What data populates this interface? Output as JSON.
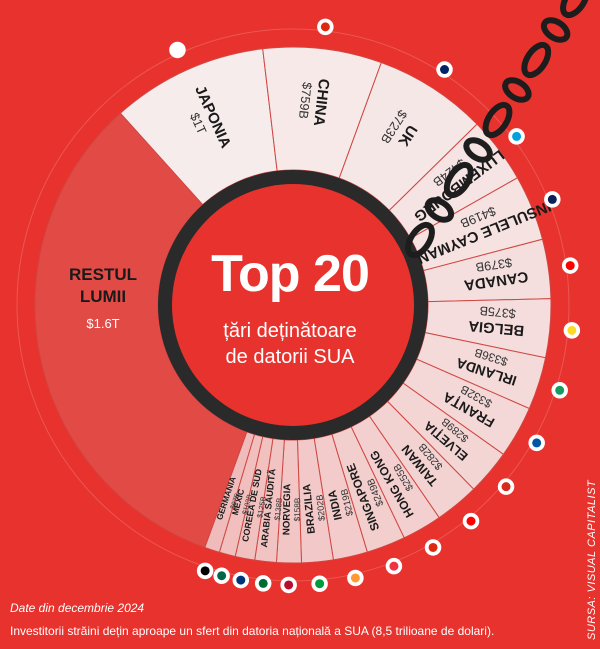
{
  "title": "Top 20",
  "subtitle_line1": "țări deținătoare",
  "subtitle_line2": "de datorii SUA",
  "footer": {
    "date": "Date din decembrie 2024",
    "note": "Investitorii străini dețin aproape un sfert din datoria națională a SUA (8,5 trilioane de dolari)."
  },
  "source": "SURSA: VISUAL CAPITALIST",
  "colors": {
    "background": "#e8322d",
    "dark_ring": "#2a2a2a",
    "rest_slice": "#e24a46",
    "light_slice": "#f6dcdb",
    "chain": "#1d1d1d"
  },
  "chart_data": {
    "type": "pie",
    "unit": "USD",
    "categories": [
      "JAPONIA",
      "CHINA",
      "UK",
      "LUXEMBOURG",
      "INSULELE CAYMAN",
      "CANADA",
      "BELGIA",
      "IRLANDA",
      "FRANȚA",
      "ELVEȚIA",
      "TAIWAN",
      "HONG KONG",
      "SINGAPORE",
      "INDIA",
      "BRAZILIA",
      "NORVEGIA",
      "ARABIA SAUDITĂ",
      "COREEA DE SUD",
      "MEXIC",
      "GERMANIA",
      "RESTUL LUMII"
    ],
    "value_labels": [
      "$1T",
      "$759B",
      "$723B",
      "$424B",
      "$419B",
      "$379B",
      "$375B",
      "$336B",
      "$332B",
      "$289B",
      "$282B",
      "$255B",
      "$249B",
      "$219B",
      "$202B",
      "$158B",
      "$138B",
      "$125B",
      "$103B",
      "$97B",
      "$1.6T"
    ],
    "values": [
      1000,
      759,
      723,
      424,
      419,
      379,
      375,
      336,
      332,
      289,
      282,
      255,
      249,
      219,
      202,
      158,
      138,
      125,
      103,
      97,
      1600
    ]
  }
}
